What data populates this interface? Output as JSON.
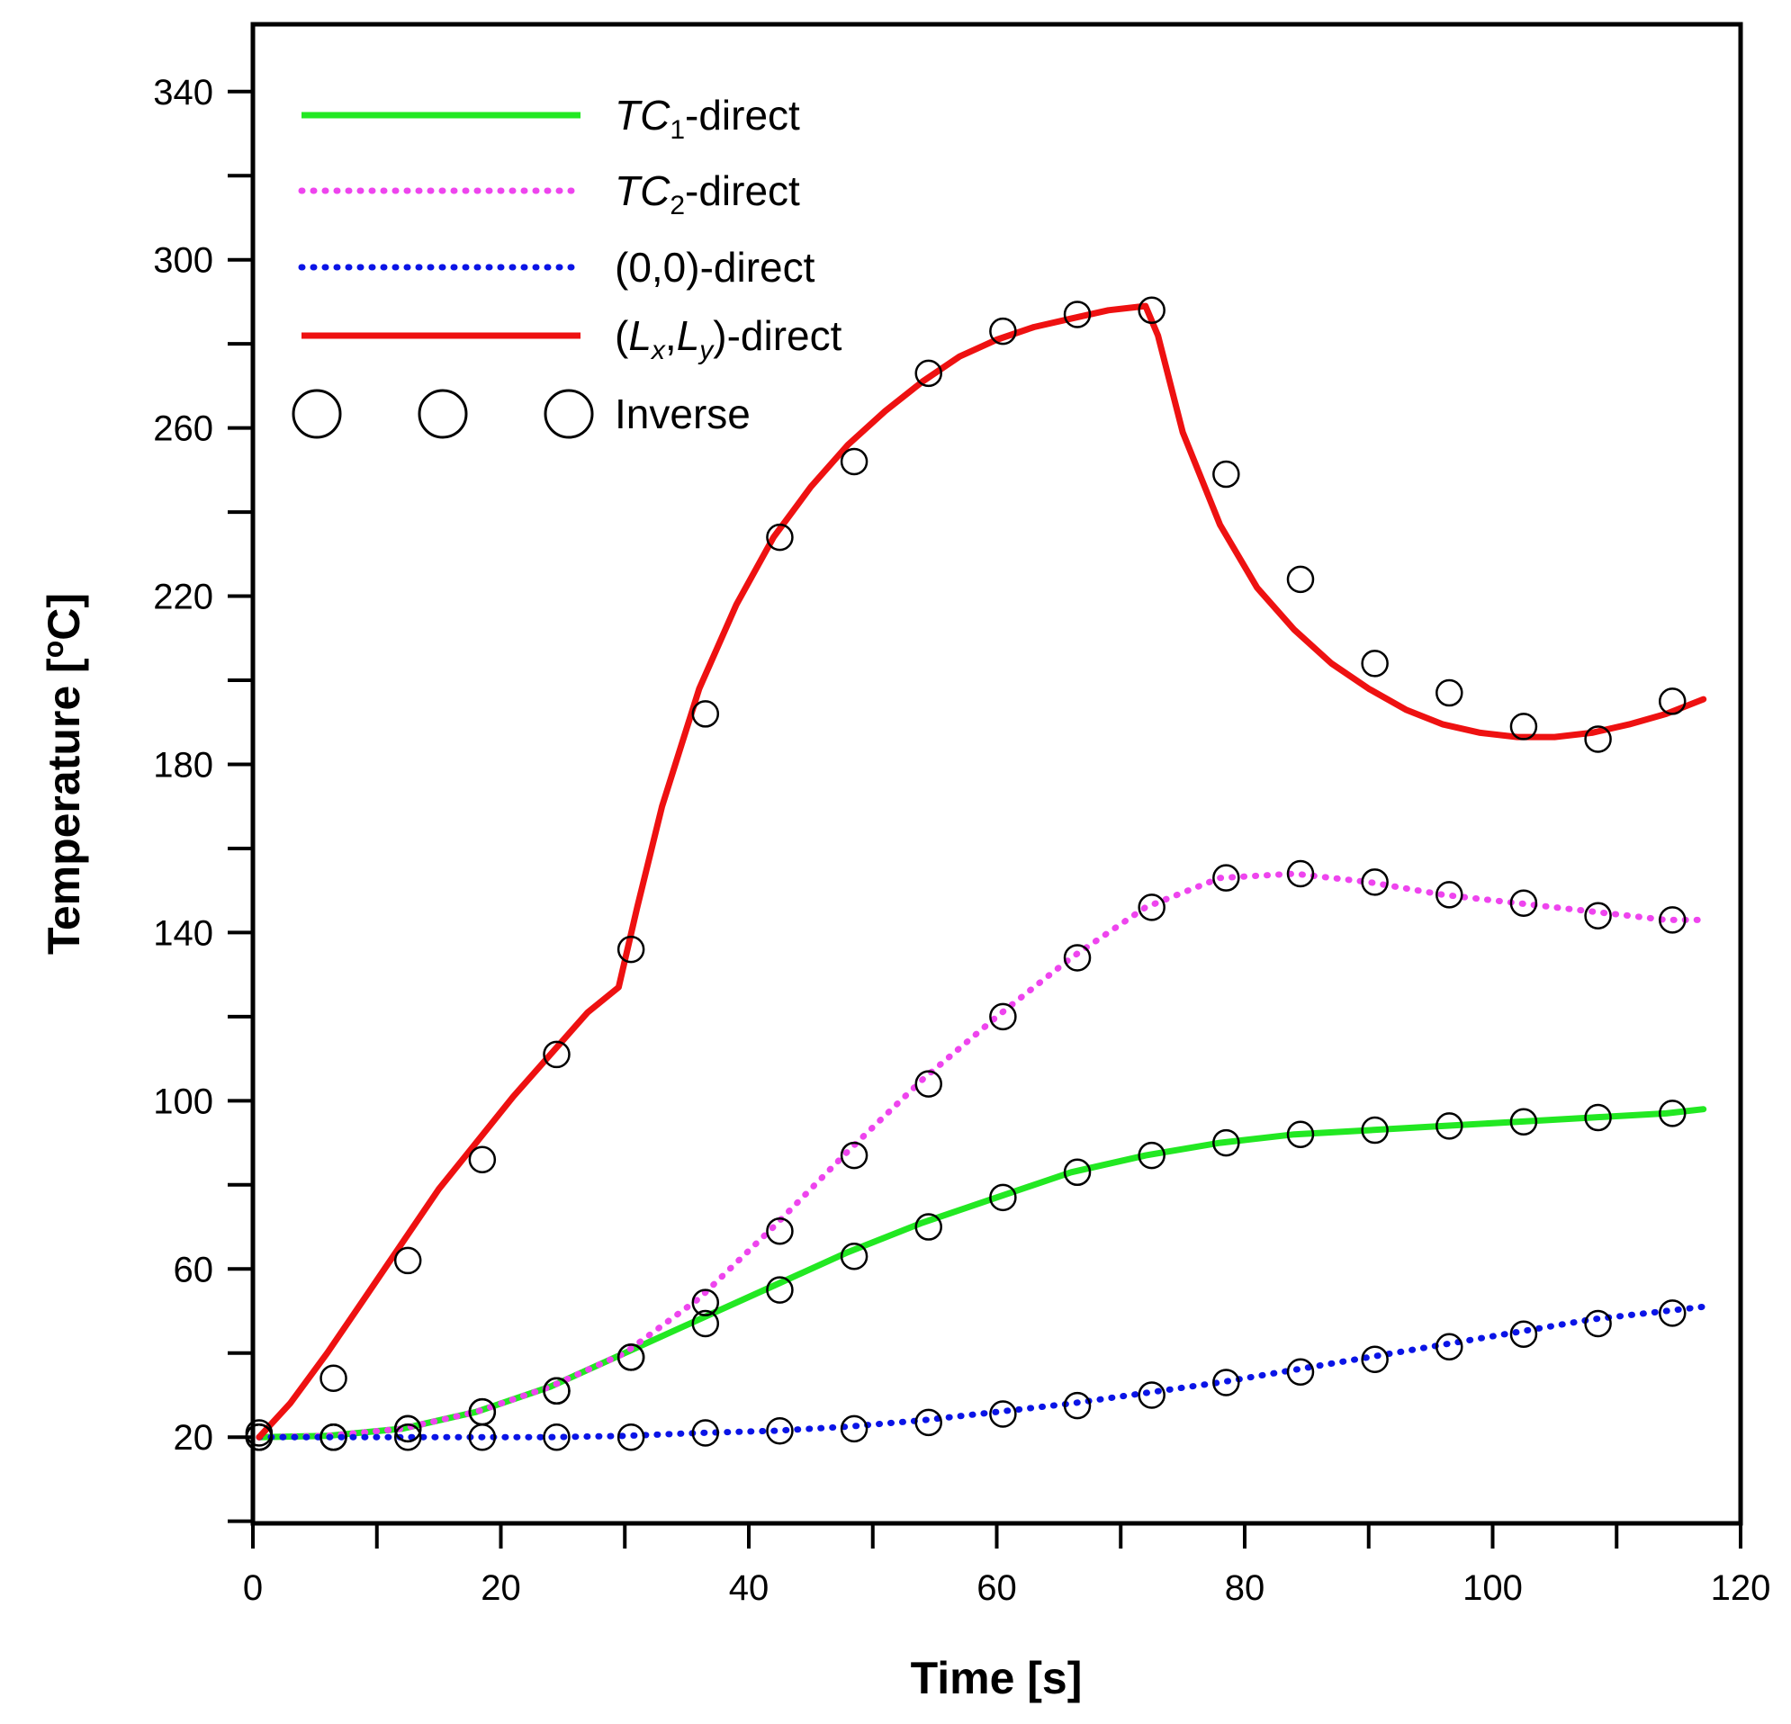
{
  "chart_data": {
    "type": "line",
    "title": "",
    "xlabel": "Time [s]",
    "ylabel": "Temperature [oC]",
    "ylabel_parts": {
      "main": "Temperature [",
      "sup": "o",
      "end": "C]"
    },
    "xlim": [
      0,
      120
    ],
    "ylim": [
      -0.5,
      356
    ],
    "x_ticks": [
      0,
      20,
      40,
      60,
      80,
      100,
      120
    ],
    "x_minor_ticks": [
      10,
      30,
      50,
      70,
      90,
      110
    ],
    "y_ticks": [
      20,
      60,
      100,
      140,
      180,
      220,
      260,
      300,
      340
    ],
    "y_minor_ticks": [
      0,
      40,
      80,
      120,
      160,
      200,
      240,
      280,
      320
    ],
    "grid": false,
    "legend_position": "top-left",
    "series": [
      {
        "name": "TC1-direct",
        "label_parts": {
          "i": "TC",
          "sub": "1",
          "t": "-direct"
        },
        "style": "solid",
        "color": "#22e822",
        "x": [
          0.5,
          6,
          12,
          18,
          24,
          30,
          36,
          42,
          48,
          54,
          60,
          66,
          72,
          78,
          84,
          90,
          96,
          102,
          108,
          114,
          117
        ],
        "y": [
          20,
          20.3,
          22,
          26,
          32,
          40,
          48,
          56,
          64,
          71,
          77,
          83,
          87,
          90,
          92,
          93,
          94,
          95,
          96,
          97,
          98
        ]
      },
      {
        "name": "TC2-direct",
        "label_parts": {
          "i": "TC",
          "sub": "2",
          "t": "-direct"
        },
        "style": "dotted",
        "color": "#ee44ee",
        "x": [
          0.5,
          6,
          12,
          18,
          24,
          30,
          36,
          42,
          48,
          54,
          60,
          66,
          72,
          78,
          84,
          90,
          96,
          102,
          108,
          114,
          117
        ],
        "y": [
          20,
          20.3,
          22,
          26,
          32,
          40,
          53,
          70,
          88,
          105,
          120,
          134,
          146,
          153,
          154,
          152,
          149,
          147,
          145,
          143,
          143
        ]
      },
      {
        "name": "(0,0)-direct",
        "label_parts": {
          "i": "",
          "sub": "",
          "t": "(0,0)-direct"
        },
        "style": "dotted",
        "color": "#0a14e6",
        "x": [
          0.5,
          6,
          12,
          18,
          24,
          30,
          36,
          42,
          48,
          54,
          60,
          66,
          72,
          78,
          84,
          90,
          96,
          102,
          108,
          114,
          117
        ],
        "y": [
          20,
          20,
          20,
          20,
          20,
          20.3,
          21,
          21.5,
          22.5,
          24,
          26,
          28,
          30.5,
          33,
          36,
          39,
          42,
          45,
          48,
          50,
          51
        ]
      },
      {
        "name": "(Lx,Ly)-direct",
        "label_parts": {
          "p1": "(",
          "L1": "L",
          "s1": "x",
          "c": ",",
          "L2": "L",
          "s2": "y",
          "p2": ")-direct"
        },
        "style": "solid",
        "color": "#ee1111",
        "x": [
          0.5,
          3,
          6,
          9,
          12,
          15,
          18,
          21,
          24,
          27,
          29.5,
          31,
          33,
          36,
          39,
          42,
          45,
          48,
          51,
          54,
          57,
          60,
          63,
          66,
          69,
          72,
          73,
          75,
          78,
          81,
          84,
          87,
          90,
          93,
          96,
          99,
          102,
          105,
          108,
          111,
          114,
          117
        ],
        "y": [
          20,
          28,
          40,
          53,
          66,
          79,
          90,
          101,
          111,
          121,
          127,
          146,
          170,
          198,
          218,
          234,
          246,
          256,
          264,
          271,
          277,
          281,
          284,
          286,
          288,
          289,
          282,
          259,
          237,
          222,
          212,
          204,
          198,
          193,
          189.5,
          187.5,
          186.5,
          186.5,
          187.5,
          189.5,
          192,
          195.5
        ]
      }
    ],
    "inverse": {
      "name": "Inverse",
      "marker": "open-circle",
      "color": "#000000",
      "x": [
        0.5,
        6.5,
        12.5,
        18.5,
        24.5,
        30.5,
        36.5,
        42.5,
        48.5,
        54.5,
        60.5,
        66.5,
        72.5,
        78.5,
        84.5,
        90.5,
        96.5,
        102.5,
        108.5,
        114.5
      ],
      "tc1": [
        20,
        20,
        22,
        26,
        31,
        39,
        47,
        55,
        63,
        70,
        77,
        83,
        87,
        90,
        92,
        93,
        94,
        95,
        96,
        97
      ],
      "tc2": [
        20,
        20,
        22,
        26,
        31,
        39,
        52,
        69,
        87,
        104,
        120,
        134,
        146,
        153,
        154,
        152,
        149,
        147,
        144,
        143
      ],
      "origin": [
        20,
        20,
        20,
        20,
        20,
        20,
        21,
        21.5,
        22,
        23.5,
        25.5,
        27.5,
        30,
        33,
        35.5,
        38.5,
        41.5,
        44.5,
        47,
        49.5
      ],
      "corner": [
        21,
        34,
        62,
        86,
        111,
        136,
        192,
        234,
        252,
        273,
        283,
        287,
        288,
        249,
        224,
        204,
        197,
        189,
        186,
        195
      ]
    }
  }
}
